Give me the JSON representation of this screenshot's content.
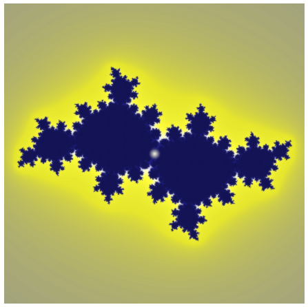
{
  "image": {
    "subject": "julia-set-fractal",
    "palette": {
      "background_gray": "#8a8a9c",
      "outer_yellow": "#e6e62e",
      "bright_yellow": "#ffff3c",
      "pale_glow": "#fffff0",
      "lavender_edge": "#c8c8f0",
      "deep_blue": "#23238c",
      "core_dark": "#0a0a32",
      "center_highlight": "#ffffe6"
    }
  }
}
